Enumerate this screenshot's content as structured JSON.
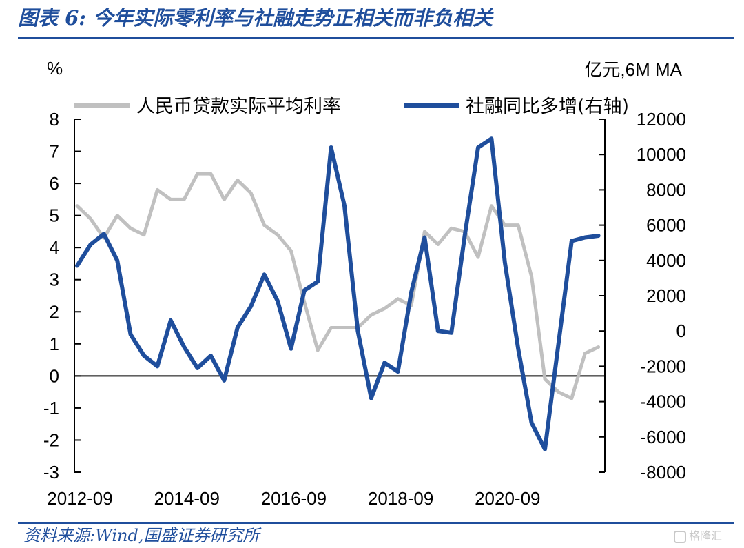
{
  "header": {
    "title": "图表 6:  今年实际零利率与社融走势正相关而非负相关"
  },
  "source": {
    "text": "资料来源:Wind,国盛证券研究所"
  },
  "watermark": {
    "text": "格隆汇"
  },
  "chart_data": {
    "type": "line",
    "title": "",
    "left_axis_unit": "%",
    "right_axis_unit": "亿元,6M MA",
    "left_axis": {
      "min": -3,
      "max": 8,
      "step": 1
    },
    "right_axis": {
      "min": -8000,
      "max": 12000,
      "step": 2000
    },
    "left_tick_labels": [
      "-3",
      "-2",
      "-1",
      "0",
      "1",
      "2",
      "3",
      "4",
      "5",
      "6",
      "7",
      "8"
    ],
    "right_tick_labels": [
      "-8000",
      "-6000",
      "-4000",
      "-2000",
      "0",
      "2000",
      "4000",
      "6000",
      "8000",
      "10000",
      "12000"
    ],
    "x_tick_labels": [
      "2012-09",
      "2014-09",
      "2016-09",
      "2018-09",
      "2020-09"
    ],
    "x_tick_quarter_index": [
      0,
      8,
      16,
      24,
      32
    ],
    "legend_position": "top",
    "grid": false,
    "colors": {
      "real_rate": "#c0c0c0",
      "tsf": "#1f4e9c",
      "axis": "#000000"
    },
    "series": [
      {
        "name": "人民币贷款实际平均利率",
        "axis": "left",
        "x_quarter": [
          0,
          1,
          2,
          3,
          4,
          5,
          6,
          7,
          8,
          9,
          10,
          11,
          12,
          13,
          14,
          15,
          16,
          17,
          18,
          19,
          20,
          21,
          22,
          23,
          24,
          25,
          26,
          27,
          28,
          29,
          30,
          31,
          32,
          33,
          34,
          35,
          36,
          37,
          38,
          39
        ],
        "values": [
          5.3,
          4.9,
          4.3,
          5.0,
          4.6,
          4.4,
          5.8,
          5.5,
          5.5,
          6.3,
          6.3,
          5.5,
          6.1,
          5.7,
          4.7,
          4.4,
          3.9,
          2.3,
          0.8,
          1.5,
          1.5,
          1.5,
          1.9,
          2.1,
          2.4,
          2.2,
          4.5,
          4.1,
          4.6,
          4.5,
          3.7,
          5.3,
          4.7,
          4.7,
          3.1,
          -0.1,
          -0.5,
          -0.7,
          0.7,
          0.9
        ]
      },
      {
        "name": "社融同比多增(右轴)",
        "axis": "right",
        "x_quarter": [
          0,
          1,
          2,
          3,
          4,
          5,
          6,
          7,
          8,
          9,
          10,
          11,
          12,
          13,
          14,
          15,
          16,
          17,
          18,
          19,
          20,
          21,
          22,
          23,
          24,
          25,
          26,
          27,
          28,
          29,
          30,
          31,
          32,
          33,
          34,
          35,
          36,
          37,
          38,
          39
        ],
        "values": [
          3700,
          4900,
          5500,
          4000,
          -200,
          -1400,
          -2000,
          600,
          -900,
          -2100,
          -1400,
          -2800,
          200,
          1400,
          3200,
          1700,
          -1000,
          2300,
          2800,
          10400,
          7100,
          0,
          -3800,
          -1800,
          -2300,
          2200,
          5300,
          0,
          -100,
          5400,
          10400,
          10900,
          3900,
          -1000,
          -5200,
          -6700,
          -800,
          5100,
          5300,
          5400
        ]
      }
    ]
  }
}
